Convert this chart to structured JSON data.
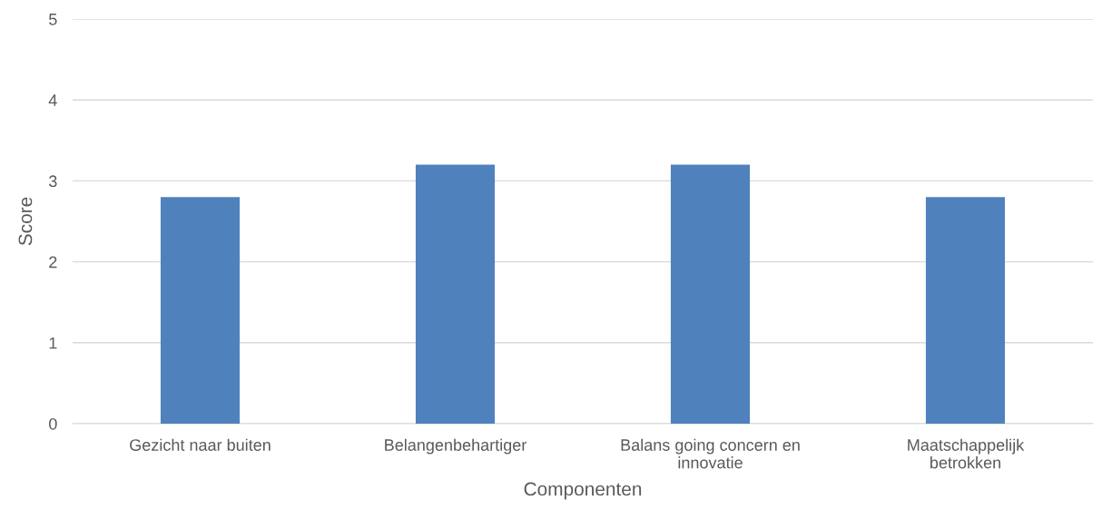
{
  "chart_data": {
    "type": "bar",
    "xlabel": "Componenten",
    "ylabel": "Score",
    "categories": [
      "Gezicht naar buiten",
      "Belangenbehartiger",
      "Balans going concern en innovatie",
      "Maatschappelijk betrokken"
    ],
    "values": [
      2.8,
      3.2,
      3.2,
      2.8
    ],
    "color": "#4f81bd",
    "ylim": [
      0,
      5
    ],
    "yticks": [
      0,
      1,
      2,
      3,
      4,
      5
    ],
    "grid": "y",
    "legend": false
  }
}
